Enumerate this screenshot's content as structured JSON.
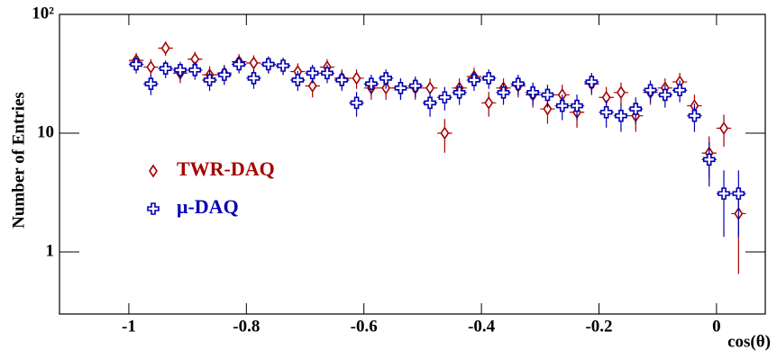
{
  "chart_data": {
    "type": "scatter",
    "xlabel": "cos(θ)",
    "ylabel": "Number of Entries",
    "xlim": [
      -1.118,
      0.083
    ],
    "ylim": [
      0.3,
      100
    ],
    "log_y": true,
    "xticks": [
      -1,
      -0.8,
      -0.6,
      -0.4,
      -0.2,
      0
    ],
    "yticks": [
      1,
      10,
      {
        "value": 100,
        "label": "10²"
      }
    ],
    "x": [
      -0.9875,
      -0.9625,
      -0.9375,
      -0.9125,
      -0.8875,
      -0.8625,
      -0.8375,
      -0.8125,
      -0.7875,
      -0.7625,
      -0.7375,
      -0.7125,
      -0.6875,
      -0.6625,
      -0.6375,
      -0.6125,
      -0.5875,
      -0.5625,
      -0.5375,
      -0.5125,
      -0.4875,
      -0.4625,
      -0.4375,
      -0.4125,
      -0.3875,
      -0.3625,
      -0.3375,
      -0.3125,
      -0.2875,
      -0.2625,
      -0.2375,
      -0.2125,
      -0.1875,
      -0.1625,
      -0.1375,
      -0.1125,
      -0.0875,
      -0.0625,
      -0.0375,
      -0.0125,
      0.0125,
      0.0375
    ],
    "series": [
      {
        "name": "TWR-DAQ",
        "color": "#a50000",
        "marker": "diamond",
        "values": [
          41,
          36,
          52,
          32,
          42,
          31,
          32,
          40,
          39,
          38,
          37,
          33,
          25,
          36,
          29,
          29,
          24,
          24,
          24,
          24,
          24,
          10,
          24,
          30,
          18,
          24,
          25,
          21,
          16,
          21,
          15,
          26,
          20,
          22,
          14,
          22,
          24,
          27,
          17,
          6.8,
          11,
          2.1
        ]
      },
      {
        "name": "μ-DAQ",
        "color": "#0000b0",
        "marker": "cross",
        "values": [
          38,
          26,
          35,
          34,
          34,
          28,
          31,
          38,
          29,
          38,
          37,
          28,
          32,
          32,
          28,
          18,
          26,
          29,
          24,
          25,
          18,
          20,
          22,
          28,
          29,
          22,
          26,
          22,
          21,
          17,
          17,
          27,
          15,
          14,
          16,
          23,
          21,
          23,
          14,
          6,
          3.1,
          3.1
        ]
      }
    ]
  }
}
